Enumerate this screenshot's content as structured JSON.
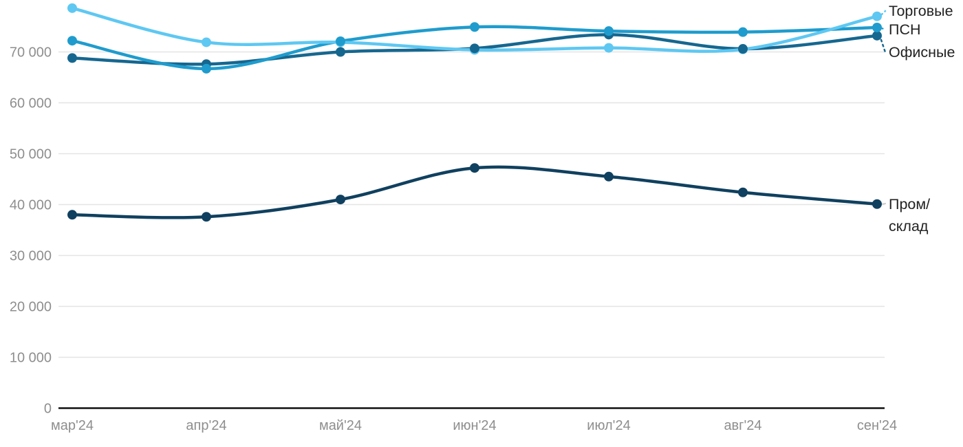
{
  "chart_data": {
    "type": "line",
    "title": "",
    "categories": [
      "мар'24",
      "апр'24",
      "май'24",
      "июн'24",
      "июл'24",
      "авг'24",
      "сен'24"
    ],
    "series": [
      {
        "name": "Торговые",
        "color": "#5ec8f2",
        "values": [
          78600,
          71900,
          71900,
          70400,
          70800,
          70500,
          77000
        ]
      },
      {
        "name": "ПСН",
        "color": "#1f9ccd",
        "values": [
          72200,
          66700,
          72100,
          74900,
          74100,
          73900,
          74800
        ]
      },
      {
        "name": "Офисные",
        "color": "#16678f",
        "values": [
          68800,
          67600,
          70000,
          70700,
          73400,
          70600,
          73200
        ]
      },
      {
        "name": "Пром/склад",
        "color": "#10405f",
        "label_lines": [
          "Пром/",
          "склад"
        ],
        "values": [
          38000,
          37600,
          41000,
          47200,
          45500,
          42400,
          40100
        ]
      }
    ],
    "yticks": [
      0,
      10000,
      20000,
      30000,
      40000,
      50000,
      60000,
      70000
    ],
    "ytick_labels": [
      "0",
      "10 000",
      "20 000",
      "30 000",
      "40 000",
      "50 000",
      "60 000",
      "70 000"
    ],
    "ylim": [
      0,
      80000
    ],
    "grid": "horizontal",
    "legend_position": "right-inline-labels"
  },
  "colors": {
    "background": "#ffffff",
    "grid": "#e4e4e4",
    "axis": "#111111",
    "tick_text": "#8e8e8e",
    "label_text": "#222222",
    "prom_leader": "#cccccc"
  }
}
